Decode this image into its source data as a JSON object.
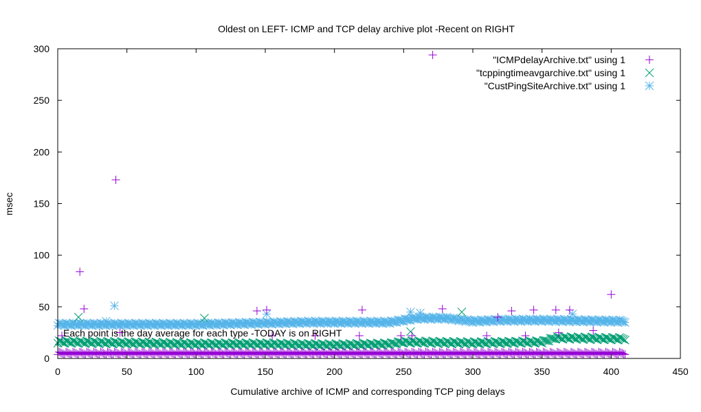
{
  "chart_data": {
    "type": "scatter",
    "title": "Oldest on LEFT- ICMP and TCP delay archive plot -Recent on RIGHT",
    "xlabel": "Cumulative archive of ICMP and corresponding TCP ping delays",
    "ylabel": "msec",
    "annotation": "Each point is the day average for each type -TODAY is on RIGHT",
    "xlim": [
      0,
      450
    ],
    "ylim": [
      0,
      300
    ],
    "xticks": [
      0,
      50,
      100,
      150,
      200,
      250,
      300,
      350,
      400,
      450
    ],
    "yticks": [
      0,
      50,
      100,
      150,
      200,
      250,
      300
    ],
    "grid": false,
    "legend_position": "top-right",
    "n_points": 411,
    "series": [
      {
        "name": "\"ICMPdelayArchive.txt\" using 1",
        "marker": "plus",
        "color": "#9400d3",
        "baseline_x": [
          0,
          50,
          100,
          150,
          200,
          250,
          300,
          350,
          410
        ],
        "baseline_y": [
          5,
          5,
          5,
          5,
          5,
          5,
          5,
          5,
          5
        ],
        "outliers": [
          [
            3,
            22
          ],
          [
            16,
            84
          ],
          [
            19,
            48
          ],
          [
            42,
            173
          ],
          [
            45,
            25
          ],
          [
            144,
            46
          ],
          [
            151,
            47
          ],
          [
            155,
            22
          ],
          [
            186,
            22
          ],
          [
            218,
            22
          ],
          [
            220,
            47
          ],
          [
            248,
            22
          ],
          [
            256,
            22
          ],
          [
            271,
            294
          ],
          [
            278,
            48
          ],
          [
            310,
            22
          ],
          [
            318,
            40
          ],
          [
            328,
            46
          ],
          [
            338,
            22
          ],
          [
            344,
            47
          ],
          [
            360,
            47
          ],
          [
            362,
            25
          ],
          [
            370,
            47
          ],
          [
            387,
            27
          ],
          [
            400,
            62
          ]
        ]
      },
      {
        "name": "\"tcppingtimeavgarchive.txt\" using 1",
        "marker": "cross",
        "color": "#009e73",
        "baseline_x": [
          0,
          50,
          100,
          150,
          200,
          240,
          250,
          300,
          350,
          360,
          410
        ],
        "baseline_y": [
          16,
          15,
          14,
          14,
          13,
          14,
          16,
          15,
          16,
          20,
          19
        ],
        "outliers": [
          [
            255,
            26
          ],
          [
            15,
            40
          ],
          [
            106,
            39
          ],
          [
            292,
            45
          ]
        ]
      },
      {
        "name": "\"CustPingSiteArchive.txt\" using 1",
        "marker": "asterisk",
        "color": "#56b4e9",
        "baseline_x": [
          0,
          50,
          100,
          140,
          180,
          240,
          260,
          280,
          300,
          320,
          350,
          410
        ],
        "baseline_y": [
          33,
          33,
          33,
          34,
          35,
          35,
          39,
          39,
          36,
          37,
          37,
          36
        ],
        "outliers": [
          [
            41,
            51
          ],
          [
            35,
            36
          ],
          [
            151,
            43
          ],
          [
            255,
            45
          ],
          [
            372,
            43
          ],
          [
            262,
            44
          ]
        ]
      }
    ]
  }
}
